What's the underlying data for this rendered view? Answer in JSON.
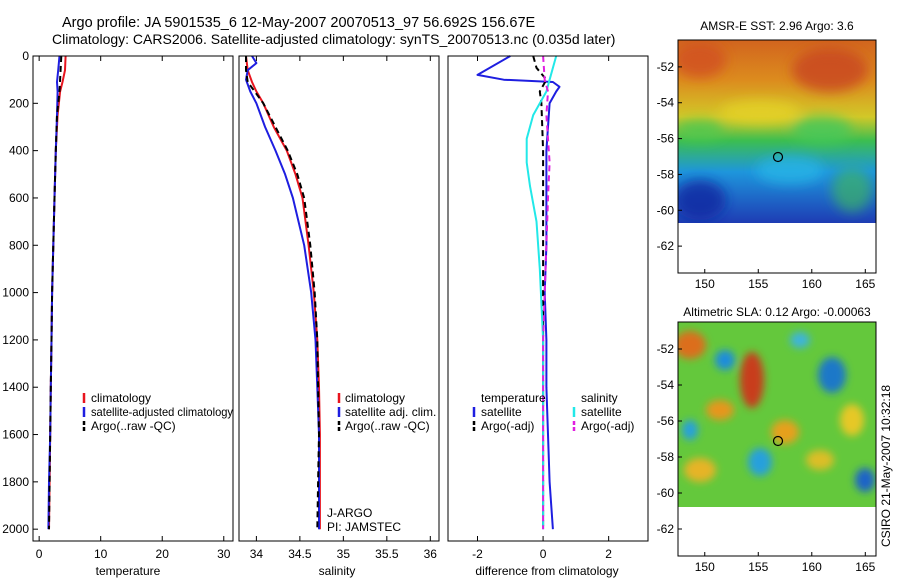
{
  "title": {
    "line1": "Argo profile: JA 5901535_6 12-May-2007 20070513_97 56.692S 156.67E",
    "line2": "Climatology: CARS2006. Satellite-adjusted climatology: synTS_20070513.nc (0.035d later)"
  },
  "side_stamp": "CSIRO 21-May-2007 10:32:18",
  "colors": {
    "red": "#e8141e",
    "blue": "#1e1ee0",
    "black": "#000000",
    "cyan": "#22e8e8",
    "magenta": "#e01ee0"
  },
  "chart_data": [
    {
      "id": "temperature",
      "type": "line",
      "xlabel": "temperature",
      "xlim": [
        -1,
        31.5
      ],
      "xticks": [
        0,
        10,
        20,
        30
      ],
      "ylim": [
        2050,
        0
      ],
      "yticks": [
        0,
        200,
        400,
        600,
        800,
        1000,
        1200,
        1400,
        1600,
        1800,
        2000
      ],
      "legend": {
        "position": "bottom-right",
        "entries": [
          "climatology",
          "satellite-adjusted climatology",
          "Argo(..raw -QC)"
        ]
      },
      "series": [
        {
          "name": "climatology",
          "color": "red",
          "dash": false,
          "points": [
            [
              4.3,
              0
            ],
            [
              4.2,
              60
            ],
            [
              3.8,
              110
            ],
            [
              3.4,
              150
            ],
            [
              3.0,
              250
            ],
            [
              2.7,
              400
            ],
            [
              2.5,
              600
            ],
            [
              2.3,
              800
            ],
            [
              2.1,
              1000
            ],
            [
              2.0,
              1200
            ],
            [
              1.9,
              1400
            ],
            [
              1.8,
              1600
            ],
            [
              1.7,
              1800
            ],
            [
              1.6,
              2000
            ]
          ]
        },
        {
          "name": "satellite-adjusted climatology",
          "color": "blue",
          "dash": false,
          "points": [
            [
              3.3,
              0
            ],
            [
              3.1,
              60
            ],
            [
              2.9,
              110
            ],
            [
              3.0,
              150
            ],
            [
              2.9,
              250
            ],
            [
              2.7,
              400
            ],
            [
              2.5,
              600
            ],
            [
              2.3,
              800
            ],
            [
              2.1,
              1000
            ],
            [
              2.0,
              1200
            ],
            [
              1.9,
              1400
            ],
            [
              1.8,
              1600
            ],
            [
              1.6,
              1800
            ],
            [
              1.5,
              2000
            ]
          ]
        },
        {
          "name": "Argo(..raw -QC)",
          "color": "black",
          "dash": true,
          "points": [
            [
              3.6,
              0
            ],
            [
              3.5,
              50
            ],
            [
              3.4,
              100
            ],
            [
              3.3,
              150
            ],
            [
              2.9,
              250
            ],
            [
              2.7,
              400
            ],
            [
              2.5,
              600
            ],
            [
              2.3,
              800
            ],
            [
              2.1,
              1000
            ],
            [
              2.0,
              1200
            ],
            [
              1.9,
              1400
            ],
            [
              1.8,
              1600
            ],
            [
              1.7,
              1800
            ],
            [
              1.6,
              2000
            ]
          ]
        }
      ]
    },
    {
      "id": "salinity",
      "type": "line",
      "xlabel": "salinity",
      "xlim": [
        33.8,
        36.1
      ],
      "xticks": [
        34,
        34.5,
        35,
        35.5,
        36
      ],
      "ylim": [
        2050,
        0
      ],
      "yticks": [
        0,
        200,
        400,
        600,
        800,
        1000,
        1200,
        1400,
        1600,
        1800,
        2000
      ],
      "legend": {
        "position": "bottom-right",
        "entries": [
          "climatology",
          "satellite adj. clim.",
          "Argo(..raw -QC)"
        ]
      },
      "annotation": [
        "J-ARGO",
        "PI: JAMSTEC"
      ],
      "series": [
        {
          "name": "climatology",
          "color": "red",
          "dash": false,
          "points": [
            [
              33.88,
              0
            ],
            [
              33.9,
              60
            ],
            [
              33.95,
              110
            ],
            [
              34.0,
              150
            ],
            [
              34.08,
              200
            ],
            [
              34.2,
              300
            ],
            [
              34.35,
              400
            ],
            [
              34.45,
              500
            ],
            [
              34.53,
              600
            ],
            [
              34.6,
              800
            ],
            [
              34.66,
              1000
            ],
            [
              34.7,
              1200
            ],
            [
              34.72,
              1400
            ],
            [
              34.73,
              1600
            ],
            [
              34.73,
              1800
            ],
            [
              34.73,
              2000
            ]
          ]
        },
        {
          "name": "satellite adj. clim.",
          "color": "blue",
          "dash": false,
          "points": [
            [
              33.95,
              0
            ],
            [
              34.0,
              30
            ],
            [
              33.9,
              60
            ],
            [
              33.88,
              100
            ],
            [
              33.93,
              150
            ],
            [
              34.0,
              200
            ],
            [
              34.1,
              300
            ],
            [
              34.22,
              400
            ],
            [
              34.33,
              500
            ],
            [
              34.42,
              600
            ],
            [
              34.55,
              800
            ],
            [
              34.63,
              1000
            ],
            [
              34.68,
              1200
            ],
            [
              34.7,
              1400
            ],
            [
              34.72,
              1600
            ],
            [
              34.72,
              1800
            ],
            [
              34.72,
              2000
            ]
          ]
        },
        {
          "name": "Argo(..raw -QC)",
          "color": "black",
          "dash": true,
          "points": [
            [
              33.88,
              0
            ],
            [
              33.88,
              60
            ],
            [
              33.9,
              110
            ],
            [
              33.98,
              150
            ],
            [
              34.08,
              200
            ],
            [
              34.22,
              300
            ],
            [
              34.36,
              400
            ],
            [
              34.47,
              500
            ],
            [
              34.55,
              600
            ],
            [
              34.62,
              800
            ],
            [
              34.67,
              1000
            ],
            [
              34.7,
              1200
            ],
            [
              34.71,
              1400
            ],
            [
              34.72,
              1600
            ],
            [
              34.71,
              1800
            ],
            [
              34.7,
              2000
            ]
          ]
        }
      ]
    },
    {
      "id": "difference",
      "type": "line",
      "xlabel": "difference from climatology",
      "xlim": [
        -2.9,
        3.2
      ],
      "xticks": [
        -2,
        0,
        2
      ],
      "ylim": [
        2050,
        0
      ],
      "yticks": [
        0,
        200,
        400,
        600,
        800,
        1000,
        1200,
        1400,
        1600,
        1800,
        2000
      ],
      "legend": {
        "position": "bottom",
        "headers": [
          "temperature",
          "salinity"
        ],
        "entries": [
          "satellite",
          "Argo(-adj)",
          "satellite",
          "Argo(-adj)"
        ]
      },
      "series": [
        {
          "name": "temperature satellite",
          "color": "blue",
          "dash": false,
          "points": [
            [
              -1.0,
              0
            ],
            [
              -2.0,
              80
            ],
            [
              -1.2,
              100
            ],
            [
              0.3,
              110
            ],
            [
              0.5,
              130
            ],
            [
              0.4,
              150
            ],
            [
              0.2,
              200
            ],
            [
              0.1,
              400
            ],
            [
              0.1,
              600
            ],
            [
              0.1,
              800
            ],
            [
              0.05,
              1000
            ],
            [
              0.1,
              1200
            ],
            [
              0.1,
              1400
            ],
            [
              0.15,
              1600
            ],
            [
              0.2,
              1800
            ],
            [
              0.3,
              2000
            ]
          ]
        },
        {
          "name": "temperature Argo(-adj)",
          "color": "black",
          "dash": true,
          "points": [
            [
              -0.3,
              0
            ],
            [
              -0.2,
              50
            ],
            [
              0.1,
              100
            ],
            [
              -0.1,
              150
            ],
            [
              -0.05,
              200
            ],
            [
              0.0,
              400
            ],
            [
              0.0,
              600
            ],
            [
              0.0,
              800
            ],
            [
              0.0,
              1000
            ],
            [
              0.0,
              1200
            ],
            [
              0.0,
              1400
            ],
            [
              0.0,
              1600
            ],
            [
              0.0,
              1800
            ],
            [
              0.0,
              2000
            ]
          ]
        },
        {
          "name": "salinity satellite",
          "color": "cyan",
          "dash": false,
          "points": [
            [
              0.4,
              0
            ],
            [
              0.2,
              100
            ],
            [
              0.1,
              150
            ],
            [
              -0.3,
              250
            ],
            [
              -0.5,
              350
            ],
            [
              -0.5,
              450
            ],
            [
              -0.4,
              550
            ],
            [
              -0.2,
              700
            ],
            [
              -0.1,
              900
            ],
            [
              0.0,
              1200
            ],
            [
              0.0,
              1600
            ],
            [
              0.0,
              2000
            ]
          ]
        },
        {
          "name": "salinity Argo(-adj)",
          "color": "magenta",
          "dash": true,
          "points": [
            [
              0.0,
              0
            ],
            [
              0.05,
              100
            ],
            [
              0.15,
              150
            ],
            [
              0.1,
              250
            ],
            [
              0.15,
              350
            ],
            [
              0.2,
              450
            ],
            [
              0.15,
              600
            ],
            [
              0.1,
              800
            ],
            [
              0.05,
              1000
            ],
            [
              0.0,
              1200
            ],
            [
              0.0,
              1600
            ],
            [
              0.0,
              2000
            ]
          ]
        }
      ]
    },
    {
      "id": "sst-map",
      "type": "heatmap",
      "title": "AMSR-E SST: 2.96 Argo: 3.6",
      "xlim": [
        147.5,
        166
      ],
      "ylim": [
        -63.5,
        -50.5
      ],
      "xticks": [
        150,
        155,
        160,
        165
      ],
      "yticks": [
        -52,
        -54,
        -56,
        -58,
        -60,
        -62
      ],
      "data_lat_range": [
        -60.1,
        -50.5
      ],
      "argo_position": [
        156.67,
        -56.692
      ]
    },
    {
      "id": "sla-map",
      "type": "heatmap",
      "title": "Altimetric SLA: 0.12 Argo: -0.00063",
      "xlim": [
        147.5,
        166
      ],
      "ylim": [
        -63.5,
        -50.5
      ],
      "xticks": [
        150,
        155,
        160,
        165
      ],
      "yticks": [
        -52,
        -54,
        -56,
        -58,
        -60,
        -62
      ],
      "data_lat_range": [
        -60.1,
        -50.5
      ],
      "argo_position": [
        156.67,
        -56.692
      ]
    }
  ]
}
